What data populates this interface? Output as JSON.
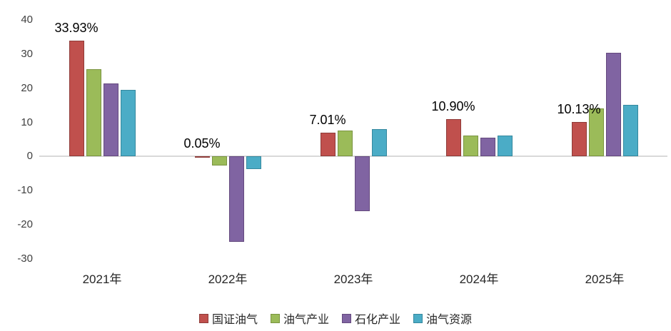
{
  "chart_data": {
    "type": "bar",
    "title": "",
    "xlabel": "",
    "ylabel": "",
    "categories": [
      "2021年",
      "2022年",
      "2023年",
      "2024年",
      "2025年"
    ],
    "series": [
      {
        "name": "国证油气",
        "color": "#C0504D",
        "border": "#8E3B38",
        "values": [
          33.93,
          0.05,
          7.01,
          10.9,
          10.13
        ]
      },
      {
        "name": "油气产业",
        "color": "#9BBB59",
        "border": "#7A9440",
        "values": [
          25.6,
          -2.6,
          7.6,
          6.2,
          14.1
        ]
      },
      {
        "name": "石化产业",
        "color": "#8064A2",
        "border": "#64497E",
        "values": [
          21.3,
          -25.0,
          -16.0,
          5.5,
          30.3
        ]
      },
      {
        "name": "油气资源",
        "color": "#4BACC6",
        "border": "#35889E",
        "values": [
          19.6,
          -3.7,
          8.0,
          6.2,
          15.1
        ]
      }
    ],
    "data_labels": [
      "33.93%",
      "0.05%",
      "7.01%",
      "10.90%",
      "10.13%"
    ],
    "data_label_series": "国证油气",
    "ylim": [
      -30,
      40
    ],
    "yticks": [
      40,
      30,
      20,
      10,
      0,
      -10,
      -20,
      -30
    ],
    "grid": false,
    "legend_position": "bottom"
  }
}
